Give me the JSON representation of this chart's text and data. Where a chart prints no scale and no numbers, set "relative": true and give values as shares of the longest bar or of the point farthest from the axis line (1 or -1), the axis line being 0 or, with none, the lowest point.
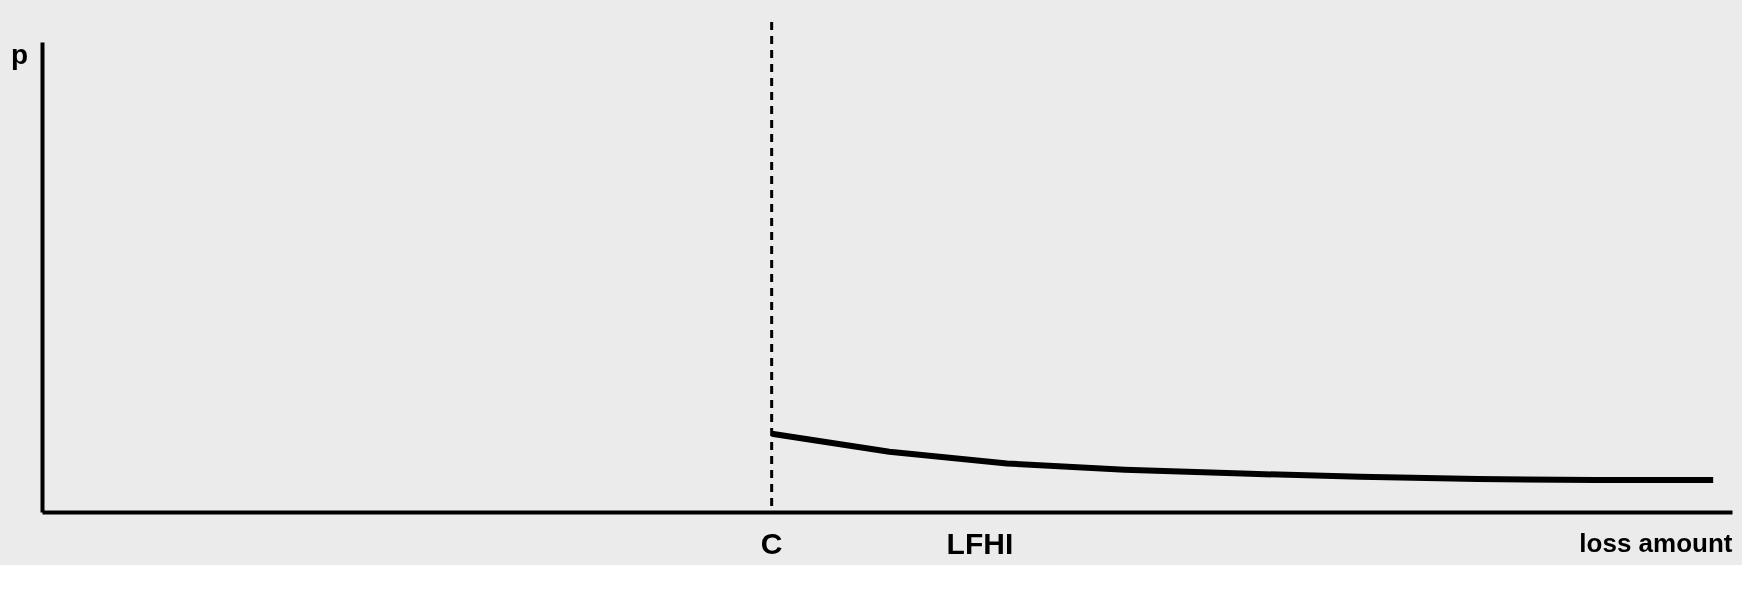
{
  "chart_data": {
    "type": "line",
    "relative": true,
    "xlabel": "loss amount",
    "grid": false,
    "marker": "none",
    "line_style": "solid",
    "categories": [
      null,
      null,
      null,
      null,
      null,
      null,
      null,
      null,
      null
    ],
    "series": [
      {
        "color": "#000000",
        "values": [
          1,
          0.77,
          0.62,
          0.54,
          0.49,
          0.45,
          0.42,
          0.41,
          0.41
        ]
      }
    ],
    "ref_lines": [
      {
        "axis": "x",
        "label": "C",
        "color": "#000000",
        "line_style": "dashed"
      }
    ],
    "annotations": [
      "p",
      "LFHI"
    ]
  }
}
